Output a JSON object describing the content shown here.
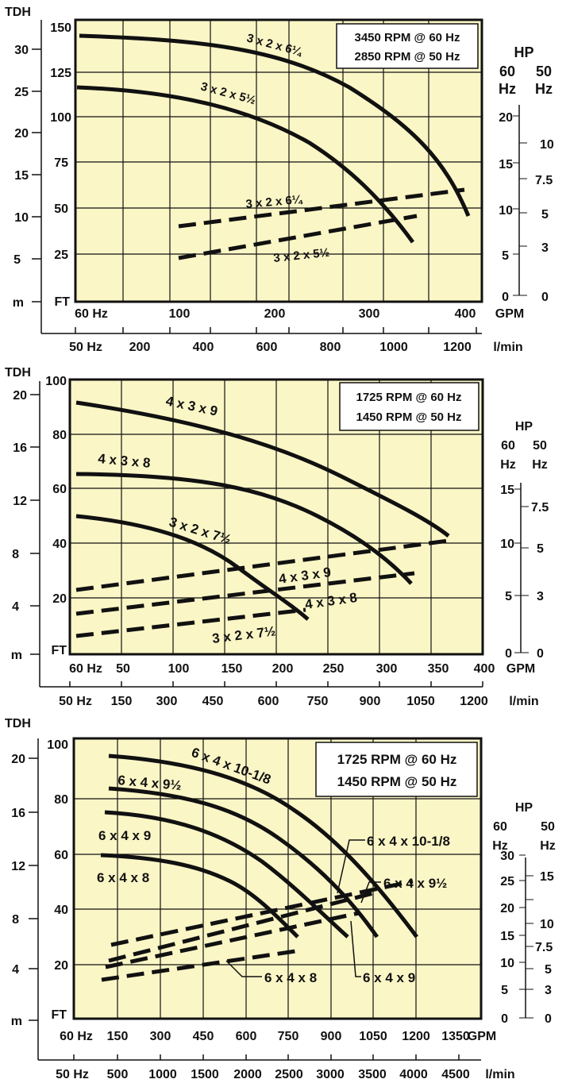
{
  "charts": [
    {
      "id": "chart1",
      "rpm_lines": [
        "3450 RPM @ 60 Hz",
        "2850 RPM @ 50 Hz"
      ],
      "axis_words": {
        "tdh": "TDH",
        "ft": "FT",
        "m": "m",
        "hp": "HP",
        "hz60": "60",
        "hz50": "50",
        "hz": "Hz",
        "hz60_label": "60  Hz",
        "hz50_label": "50  Hz",
        "gpm": "GPM",
        "lmin": "l/min"
      },
      "ft_ticks": [
        "150",
        "125",
        "100",
        "75",
        "50",
        "25"
      ],
      "m_ticks": [
        "30",
        "25",
        "20",
        "15",
        "10",
        "5"
      ],
      "gpm_ticks": [
        "100",
        "200",
        "300",
        "400"
      ],
      "lmin_ticks": [
        "200",
        "400",
        "600",
        "800",
        "1000",
        "1200"
      ],
      "hp60_ticks": [
        "20",
        "15",
        "10",
        "5",
        "0"
      ],
      "hp50_ticks": [
        "10",
        "7.5",
        "5",
        "3",
        "0"
      ],
      "curve_labels": [
        "3 x 2 x 6¼",
        "3 x 2 x 5½"
      ],
      "hp_labels": [
        "3 x 2 x 6¼",
        "3 x 2 x 5½"
      ]
    },
    {
      "id": "chart2",
      "rpm_lines": [
        "1725 RPM @ 60 Hz",
        "1450 RPM @ 50 Hz"
      ],
      "axis_words": {
        "tdh": "TDH",
        "ft": "FT",
        "m": "m",
        "hp": "HP",
        "hz60": "60",
        "hz50": "50",
        "hz": "Hz",
        "hz60_label": "60  Hz",
        "hz50_label": "50  Hz",
        "gpm": "GPM",
        "lmin": "l/min"
      },
      "ft_ticks": [
        "100",
        "80",
        "60",
        "40",
        "20"
      ],
      "m_ticks": [
        "20",
        "16",
        "12",
        "8",
        "4"
      ],
      "gpm_ticks": [
        "50",
        "100",
        "150",
        "200",
        "250",
        "300",
        "350",
        "400"
      ],
      "lmin_ticks": [
        "150",
        "300",
        "450",
        "600",
        "750",
        "900",
        "1050",
        "1200"
      ],
      "hp60_ticks": [
        "15",
        "10",
        "5",
        "0"
      ],
      "hp50_ticks": [
        "7.5",
        "5",
        "3",
        "0"
      ],
      "curve_labels": [
        "4 x 3 x 9",
        "4 x 3 x 8",
        "3 x 2 x 7½"
      ],
      "hp_labels": [
        "4 x 3 x 9",
        "4 x 3 x 8",
        "3 x 2 x 7½"
      ]
    },
    {
      "id": "chart3",
      "rpm_lines": [
        "1725 RPM @ 60 Hz",
        "1450 RPM @ 50 Hz"
      ],
      "axis_words": {
        "tdh": "TDH",
        "ft": "FT",
        "m": "m",
        "hp": "HP",
        "hz60": "60",
        "hz50": "50",
        "hz": "Hz",
        "hz60_label": "60 Hz",
        "hz50_label": "50 Hz",
        "gpm": "GPM",
        "lmin": "l/min"
      },
      "ft_ticks": [
        "100",
        "80",
        "60",
        "40",
        "20"
      ],
      "m_ticks": [
        "20",
        "16",
        "12",
        "8",
        "4"
      ],
      "gpm_ticks": [
        "150",
        "300",
        "450",
        "600",
        "750",
        "900",
        "1050",
        "1200",
        "1350"
      ],
      "lmin_ticks": [
        "500",
        "1000",
        "1500",
        "2000",
        "2500",
        "3000",
        "3500",
        "4000",
        "4500"
      ],
      "hp60_ticks": [
        "30",
        "25",
        "20",
        "15",
        "10",
        "5",
        "0"
      ],
      "hp50_ticks": [
        "15",
        "10",
        "7.5",
        "5",
        "3",
        "0"
      ],
      "curve_labels": [
        "6 x 4 x 10-1/8",
        "6 x 4 x 9½",
        "6 x 4 x 9",
        "6 x 4 x 8"
      ],
      "hp_labels": [
        "6 x 4 x 10-1/8",
        "6 x 4 x 9½",
        "6 x 4 x 8",
        "6 x 4 x 9"
      ]
    }
  ],
  "colors": {
    "background": "#FBF6C6",
    "line": "#111111",
    "box": "#ffffff"
  },
  "chart_data": [
    {
      "type": "line",
      "title": "3450 RPM @ 60 Hz / 2850 RPM @ 50 Hz",
      "xlabel": "GPM",
      "ylabel": "TDH (FT)",
      "xlim": [
        -60,
        430
      ],
      "ylim": [
        0,
        155
      ],
      "grid": true,
      "series": [
        {
          "name": "3 x 2 x 6¼",
          "kind": "head_ft",
          "x": [
            0,
            100,
            150,
            200,
            250,
            300,
            350,
            390
          ],
          "y": [
            145,
            143,
            140,
            135,
            127,
            114,
            90,
            48
          ]
        },
        {
          "name": "3 x 2 x 5½",
          "kind": "head_ft",
          "x": [
            0,
            100,
            150,
            200,
            250,
            280,
            300,
            322
          ],
          "y": [
            117,
            114,
            108,
            98,
            82,
            70,
            58,
            32
          ]
        },
        {
          "name": "3 x 2 x 6¼",
          "kind": "hp_60hz",
          "x": [
            100,
            390
          ],
          "y": [
            7.7,
            11.5
          ]
        },
        {
          "name": "3 x 2 x 5½",
          "kind": "hp_60hz",
          "x": [
            100,
            325
          ],
          "y": [
            4.7,
            8.8
          ]
        }
      ]
    },
    {
      "type": "line",
      "title": "1725 RPM @ 60 Hz / 1450 RPM @ 50 Hz",
      "xlabel": "GPM",
      "ylabel": "TDH (FT)",
      "xlim": [
        0,
        400
      ],
      "ylim": [
        0,
        100
      ],
      "grid": true,
      "series": [
        {
          "name": "4 x 3 x 9",
          "kind": "head_ft",
          "x": [
            10,
            100,
            150,
            200,
            250,
            300,
            365
          ],
          "y": [
            94,
            88,
            81,
            73,
            64,
            54,
            46
          ]
        },
        {
          "name": "4 x 3 x 8",
          "kind": "head_ft",
          "x": [
            10,
            100,
            150,
            200,
            250,
            300,
            333
          ],
          "y": [
            70,
            67,
            61,
            53,
            44,
            32,
            27
          ]
        },
        {
          "name": "3 x 2 x 7½",
          "kind": "head_ft",
          "x": [
            10,
            50,
            100,
            150,
            200,
            228
          ],
          "y": [
            54,
            52,
            46,
            36,
            20,
            15
          ]
        },
        {
          "name": "4 x 3 x 9",
          "kind": "hp_60hz",
          "x": [
            10,
            365
          ],
          "y": [
            5.4,
            10.3
          ]
        },
        {
          "name": "4 x 3 x 8",
          "kind": "hp_60hz",
          "x": [
            10,
            333
          ],
          "y": [
            3.4,
            6.6
          ]
        },
        {
          "name": "3 x 2 x 7½",
          "kind": "hp_60hz",
          "x": [
            10,
            228
          ],
          "y": [
            1.3,
            3.7
          ]
        }
      ]
    },
    {
      "type": "line",
      "title": "1725 RPM @ 60 Hz / 1450 RPM @ 50 Hz",
      "xlabel": "GPM",
      "ylabel": "TDH (FT)",
      "xlim": [
        0,
        1550
      ],
      "ylim": [
        0,
        100
      ],
      "grid": true,
      "series": [
        {
          "name": "6 x 4 x 10-1/8",
          "kind": "head_ft",
          "x": [
            150,
            450,
            750,
            900,
            1050,
            1250
          ],
          "y": [
            96,
            92,
            82,
            70,
            52,
            30
          ]
        },
        {
          "name": "6 x 4 x 9½",
          "kind": "head_ft",
          "x": [
            150,
            450,
            750,
            900,
            1040,
            1130
          ],
          "y": [
            87,
            82,
            71,
            60,
            41,
            30
          ]
        },
        {
          "name": "6 x 4 x 9",
          "kind": "head_ft",
          "x": [
            150,
            450,
            750,
            850,
            950,
            1000
          ],
          "y": [
            76,
            71,
            59,
            49,
            36,
            30
          ]
        },
        {
          "name": "6 x 4 x 8",
          "kind": "head_ft",
          "x": [
            150,
            300,
            450,
            600,
            750,
            810
          ],
          "y": [
            60,
            58,
            53,
            44,
            34,
            30
          ]
        },
        {
          "name": "6 x 4 x 10-1/8",
          "kind": "hp_60hz",
          "x": [
            150,
            1250
          ],
          "y": [
            14,
            30
          ]
        },
        {
          "name": "6 x 4 x 9½",
          "kind": "hp_60hz",
          "x": [
            150,
            1130
          ],
          "y": [
            11,
            25
          ]
        },
        {
          "name": "6 x 4 x 9",
          "kind": "hp_60hz",
          "x": [
            150,
            1000
          ],
          "y": [
            10,
            20
          ]
        },
        {
          "name": "6 x 4 x 8",
          "kind": "hp_60hz",
          "x": [
            150,
            810
          ],
          "y": [
            7,
            12
          ]
        }
      ]
    }
  ]
}
